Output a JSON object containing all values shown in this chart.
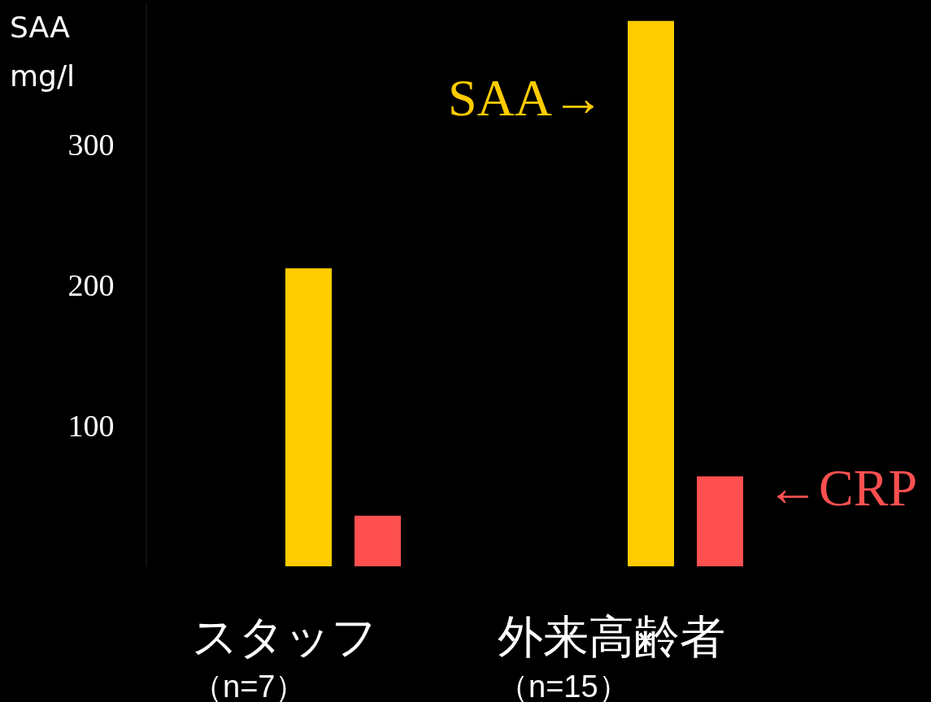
{
  "chart_data": {
    "type": "bar",
    "ylabel": "SAA\nmg/l",
    "categories": [
      "スタッフ（n=7）",
      "外来高齢者（n=15）"
    ],
    "series": [
      {
        "color": "#ffcc00",
        "values": [
          212,
          388
        ]
      },
      {
        "color": "#ff5050",
        "values": [
          36,
          64
        ]
      }
    ],
    "ylim": [
      0,
      400
    ],
    "yticks": [
      100,
      200,
      300
    ],
    "annotations": [
      "SAA→",
      "←CRP"
    ]
  }
}
